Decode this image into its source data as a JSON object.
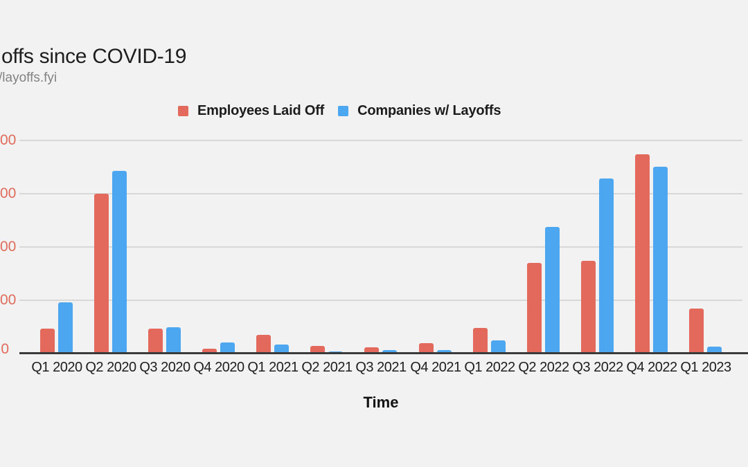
{
  "header": {
    "title_visible": "offs since COVID-19",
    "subtitle_visible": "/layoffs.fyi"
  },
  "legend": [
    {
      "label": "Employees Laid Off",
      "color": "#E2695B"
    },
    {
      "label": "Companies w/ Layoffs",
      "color": "#4DA6F0"
    }
  ],
  "chart_data": {
    "type": "bar",
    "title": "offs since COVID-19",
    "xlabel": "Time",
    "ylabel": "",
    "categories": [
      "Q1 2020",
      "Q2 2020",
      "Q3 2020",
      "Q4 2020",
      "Q1 2021",
      "Q2 2021",
      "Q3 2021",
      "Q4 2021",
      "Q1 2022",
      "Q2 2022",
      "Q3 2022",
      "Q4 2022",
      "Q1 2023"
    ],
    "series": [
      {
        "name": "Employees Laid Off",
        "color": "#E2695B",
        "values_axis_units": [
          0.47,
          3.0,
          0.47,
          0.09,
          0.35,
          0.14,
          0.12,
          0.19,
          0.48,
          1.7,
          1.74,
          3.74,
          0.84
        ]
      },
      {
        "name": "Companies w/ Layoffs",
        "color": "#4DA6F0",
        "values_axis_units": [
          0.96,
          3.43,
          0.49,
          0.21,
          0.17,
          0.04,
          0.07,
          0.06,
          0.25,
          2.38,
          3.29,
          3.51,
          0.13
        ]
      }
    ],
    "y_axis": {
      "tick_labels_visible": [
        "00",
        "00",
        "00",
        "00",
        "0"
      ],
      "gridline_values_axis_units": [
        4,
        3,
        2,
        1,
        0
      ],
      "ylim_axis_units": [
        0,
        4
      ],
      "tick_color": "#E06C5C"
    },
    "layout_hints": {
      "grid": true,
      "legend_position": "top"
    }
  },
  "colors": {
    "background": "#F2F2F2",
    "gridline": "#D8D8D8",
    "axis_line": "#3A3A3A",
    "title": "#1E1E1E",
    "subtitle": "#828282",
    "x_tick": "#1E1E1E"
  }
}
